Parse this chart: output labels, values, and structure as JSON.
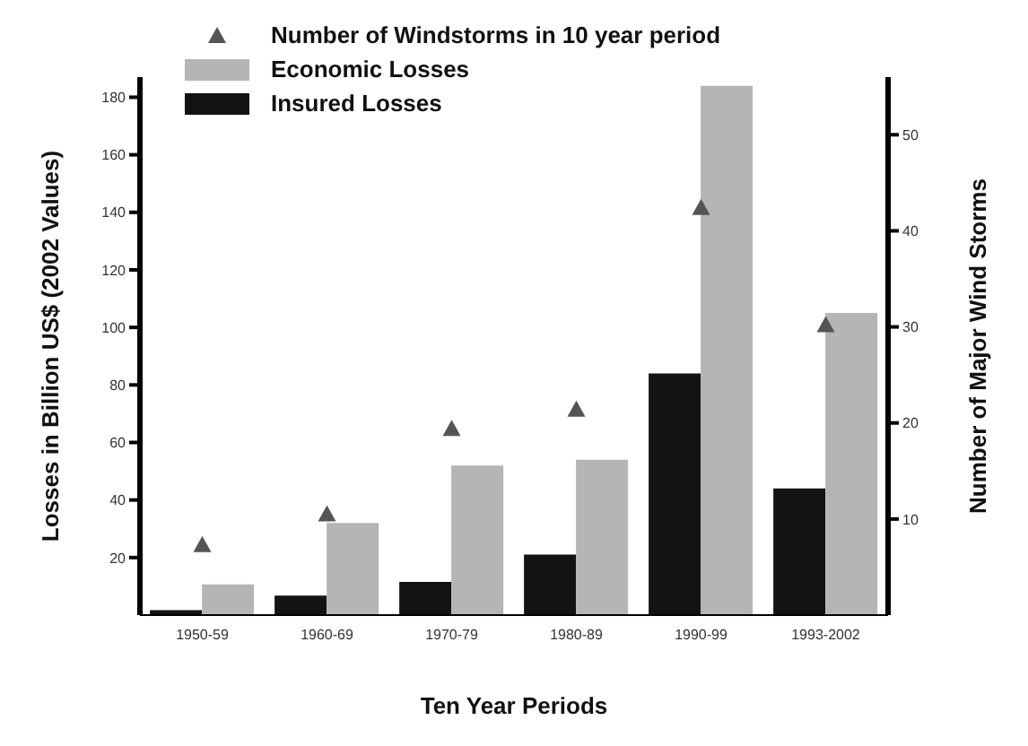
{
  "chart_data": {
    "type": "bar",
    "xlabel": "Ten Year Periods",
    "ylabel": "Losses in Billion US$ (2002 Values)",
    "y2label": "Number of Major Wind Storms",
    "categories": [
      "1950-59",
      "1960-69",
      "1970-79",
      "1980-89",
      "1990-99",
      "1993-2002"
    ],
    "series": [
      {
        "name": "Number of Windstorms in 10 year period",
        "type": "scatter",
        "axis": "y2",
        "color": "#555555",
        "marker": "triangle",
        "values": [
          7.3,
          10.5,
          19.4,
          21.4,
          42.4,
          30.2
        ]
      },
      {
        "name": "Economic Losses",
        "color": "#b5b5b5",
        "values": [
          10.7,
          32,
          52,
          54,
          184,
          105
        ]
      },
      {
        "name": "Insured Losses",
        "color": "#131313",
        "values": [
          1.7,
          6.8,
          11.5,
          21,
          84,
          44
        ]
      }
    ],
    "ylim": [
      0,
      187
    ],
    "yticks": [
      20,
      40,
      60,
      80,
      100,
      120,
      140,
      160,
      180
    ],
    "y2lim": [
      0,
      56
    ],
    "y2ticks": [
      10,
      20,
      30,
      40,
      50
    ],
    "legend": "top left"
  }
}
